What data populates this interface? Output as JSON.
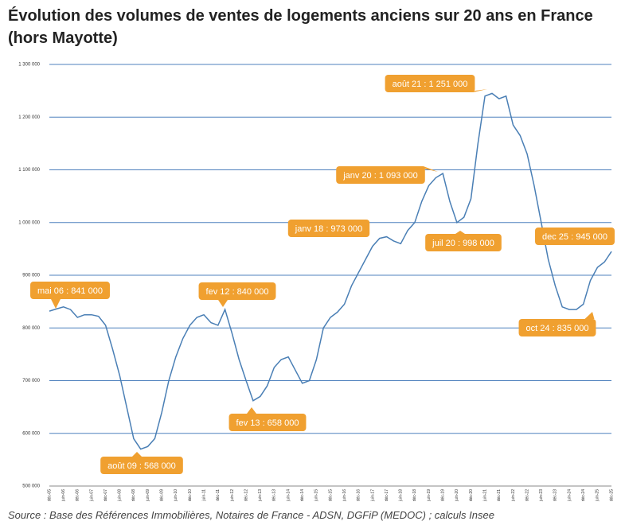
{
  "chart_data": {
    "type": "line",
    "title": "Évolution des volumes de ventes de logements anciens sur 20 ans en France (hors Mayotte)",
    "source": "Source : Base des Références Immobilières, Notaires de France - ADSN, DGFiP (MEDOC) ; calculs Insee",
    "categories": [
      "déc-05",
      null,
      "juin-06",
      null,
      "déc-06",
      null,
      "juin-07",
      null,
      "déc-07",
      null,
      "juin-08",
      null,
      "déc-08",
      null,
      "juin-09",
      null,
      "déc-09",
      null,
      "juin-10",
      null,
      "déc-10",
      null,
      "juin-11",
      null,
      "déc-11",
      null,
      "juin-12",
      null,
      "déc-12",
      null,
      "juin-13",
      null,
      "déc-13",
      null,
      "juin-14",
      null,
      "déc-14",
      null,
      "juin-15",
      null,
      "déc-15",
      null,
      "juin-16",
      null,
      "déc-16",
      null,
      "juin-17",
      null,
      "déc-17",
      null,
      "juin-18",
      null,
      "déc-18",
      null,
      "juin-19",
      null,
      "déc-19",
      null,
      "juin-20",
      null,
      "déc-20",
      null,
      "juin-21",
      null,
      "déc-21",
      null,
      "juin-22",
      null,
      "déc-22",
      null,
      "juin-23",
      null,
      "déc-23",
      null,
      "juin-24",
      null,
      "déc-24",
      null,
      "juin-25",
      null,
      "déc-25"
    ],
    "series": [
      {
        "color": "#4a7fb5",
        "values": [
          832000,
          836000,
          840000,
          835000,
          820000,
          825000,
          825000,
          822000,
          805000,
          760000,
          710000,
          650000,
          590000,
          570000,
          575000,
          590000,
          640000,
          700000,
          745000,
          780000,
          805000,
          820000,
          825000,
          810000,
          805000,
          835000,
          790000,
          740000,
          700000,
          662000,
          670000,
          690000,
          725000,
          740000,
          745000,
          720000,
          695000,
          700000,
          740000,
          800000,
          820000,
          830000,
          845000,
          880000,
          905000,
          930000,
          955000,
          970000,
          973000,
          965000,
          960000,
          985000,
          1000000,
          1040000,
          1070000,
          1085000,
          1093000,
          1040000,
          1000000,
          1010000,
          1045000,
          1150000,
          1240000,
          1245000,
          1235000,
          1240000,
          1185000,
          1165000,
          1130000,
          1070000,
          1000000,
          930000,
          880000,
          840000,
          835000,
          835000,
          845000,
          890000,
          915000,
          925000,
          945000
        ]
      }
    ],
    "ylim": [
      500000,
      1300000
    ],
    "yticks": [
      {
        "value": 500000,
        "label": "500 000"
      },
      {
        "value": 600000,
        "label": "600 000"
      },
      {
        "value": 700000,
        "label": "700 000"
      },
      {
        "value": 800000,
        "label": "800 000"
      },
      {
        "value": 900000,
        "label": "900 000"
      },
      {
        "value": 1000000,
        "label": "1 000 000"
      },
      {
        "value": 1100000,
        "label": "1 100 000"
      },
      {
        "value": 1200000,
        "label": "1 200 000"
      },
      {
        "value": 1300000,
        "label": "1 300 000"
      }
    ],
    "grid": true,
    "annotations": [
      "mai 06 : 841 000",
      "août 09 : 568 000",
      "fev 12 : 840 000",
      "fev 13 : 658 000",
      "janv  18 : 973 000",
      "janv 20 : 1 093 000",
      "juil 20 : 998 000",
      "août 21 : 1 251 000",
      "dec 25 : 945 000",
      "oct 24 : 835 000"
    ]
  }
}
